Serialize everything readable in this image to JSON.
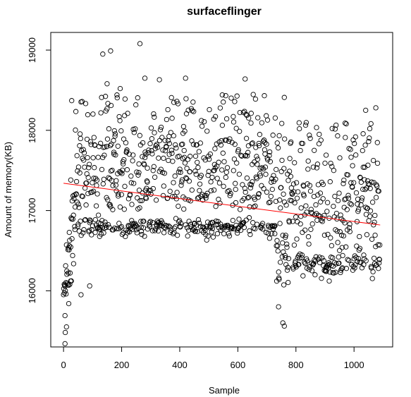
{
  "chart_data": {
    "type": "scatter",
    "title": "surfaceflinger",
    "xlabel": "Sample",
    "ylabel": "Amount of memory(KB)",
    "xlim": [
      -44,
      1133
    ],
    "ylim": [
      15300,
      19220
    ],
    "xticks": [
      0,
      200,
      400,
      600,
      800,
      1000
    ],
    "xtick_labels": [
      "0",
      "200",
      "400",
      "600",
      "800",
      "1000"
    ],
    "yticks": [
      16000,
      17000,
      18000,
      19000
    ],
    "ytick_labels": [
      "16000",
      "17000",
      "18000",
      "19000"
    ],
    "grid": false,
    "point_color": "#000000",
    "trend_color": "#ff0000",
    "trend_line": {
      "x": [
        0,
        1090
      ],
      "y": [
        17340,
        16820
      ]
    },
    "sample_count": 1090,
    "x_range": [
      0,
      1089
    ],
    "low_band_center": 16800,
    "highlighted_points": [
      {
        "x": 5,
        "y": 15340
      },
      {
        "x": 6,
        "y": 15480
      },
      {
        "x": 10,
        "y": 15550
      },
      {
        "x": 5,
        "y": 15690
      },
      {
        "x": 18,
        "y": 15840
      },
      {
        "x": 20,
        "y": 16560
      },
      {
        "x": 25,
        "y": 17380
      },
      {
        "x": 28,
        "y": 18370
      },
      {
        "x": 60,
        "y": 15950
      },
      {
        "x": 90,
        "y": 16060
      },
      {
        "x": 135,
        "y": 18950
      },
      {
        "x": 150,
        "y": 18580
      },
      {
        "x": 162,
        "y": 18990
      },
      {
        "x": 195,
        "y": 18520
      },
      {
        "x": 263,
        "y": 19080
      },
      {
        "x": 280,
        "y": 18650
      },
      {
        "x": 330,
        "y": 18630
      },
      {
        "x": 420,
        "y": 18650
      },
      {
        "x": 625,
        "y": 18640
      },
      {
        "x": 760,
        "y": 18410
      },
      {
        "x": 740,
        "y": 15800
      },
      {
        "x": 755,
        "y": 15600
      },
      {
        "x": 760,
        "y": 15560
      },
      {
        "x": 1040,
        "y": 18250
      },
      {
        "x": 1075,
        "y": 18280
      }
    ]
  }
}
